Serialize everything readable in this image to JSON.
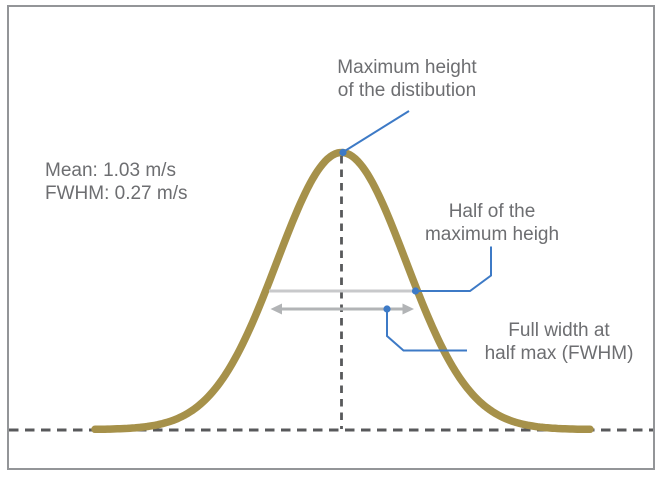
{
  "figure": {
    "stats": {
      "mean": "Mean: 1.03 m/s",
      "fwhm": "FWHM: 0.27 m/s"
    },
    "annotations": {
      "max_height": {
        "line1": "Maximum height",
        "line2": "of the distibution"
      },
      "half_max": {
        "line1": "Half of the",
        "line2": "maximum heigh"
      },
      "fwhm": {
        "line1": "Full width at",
        "line2": "half max (FWHM)"
      }
    },
    "colors": {
      "curve": "#a6914a",
      "connector": "#3d7ac6",
      "text": "#6d6e71",
      "dash": "#58595b",
      "half_max_line": "#c8c9cb",
      "arrow": "#b2b4b6",
      "border": "#939598",
      "background": "#ffffff"
    }
  },
  "chart_data": {
    "type": "line",
    "description": "Gaussian (normal) velocity distribution illustrating maximum height, half maximum and full width at half maximum (FWHM)",
    "series": [
      {
        "name": "distribution",
        "shape": "gaussian",
        "mean": 1.03,
        "fwhm": 0.27,
        "units": "m/s"
      }
    ],
    "annotations": [
      "Maximum height of the distibution",
      "Half of the maximum heigh",
      "Full width at half max (FWHM)"
    ],
    "axes": "none (baseline shown as dashed zero line, mean shown as dashed vertical line)",
    "legend": "none"
  }
}
